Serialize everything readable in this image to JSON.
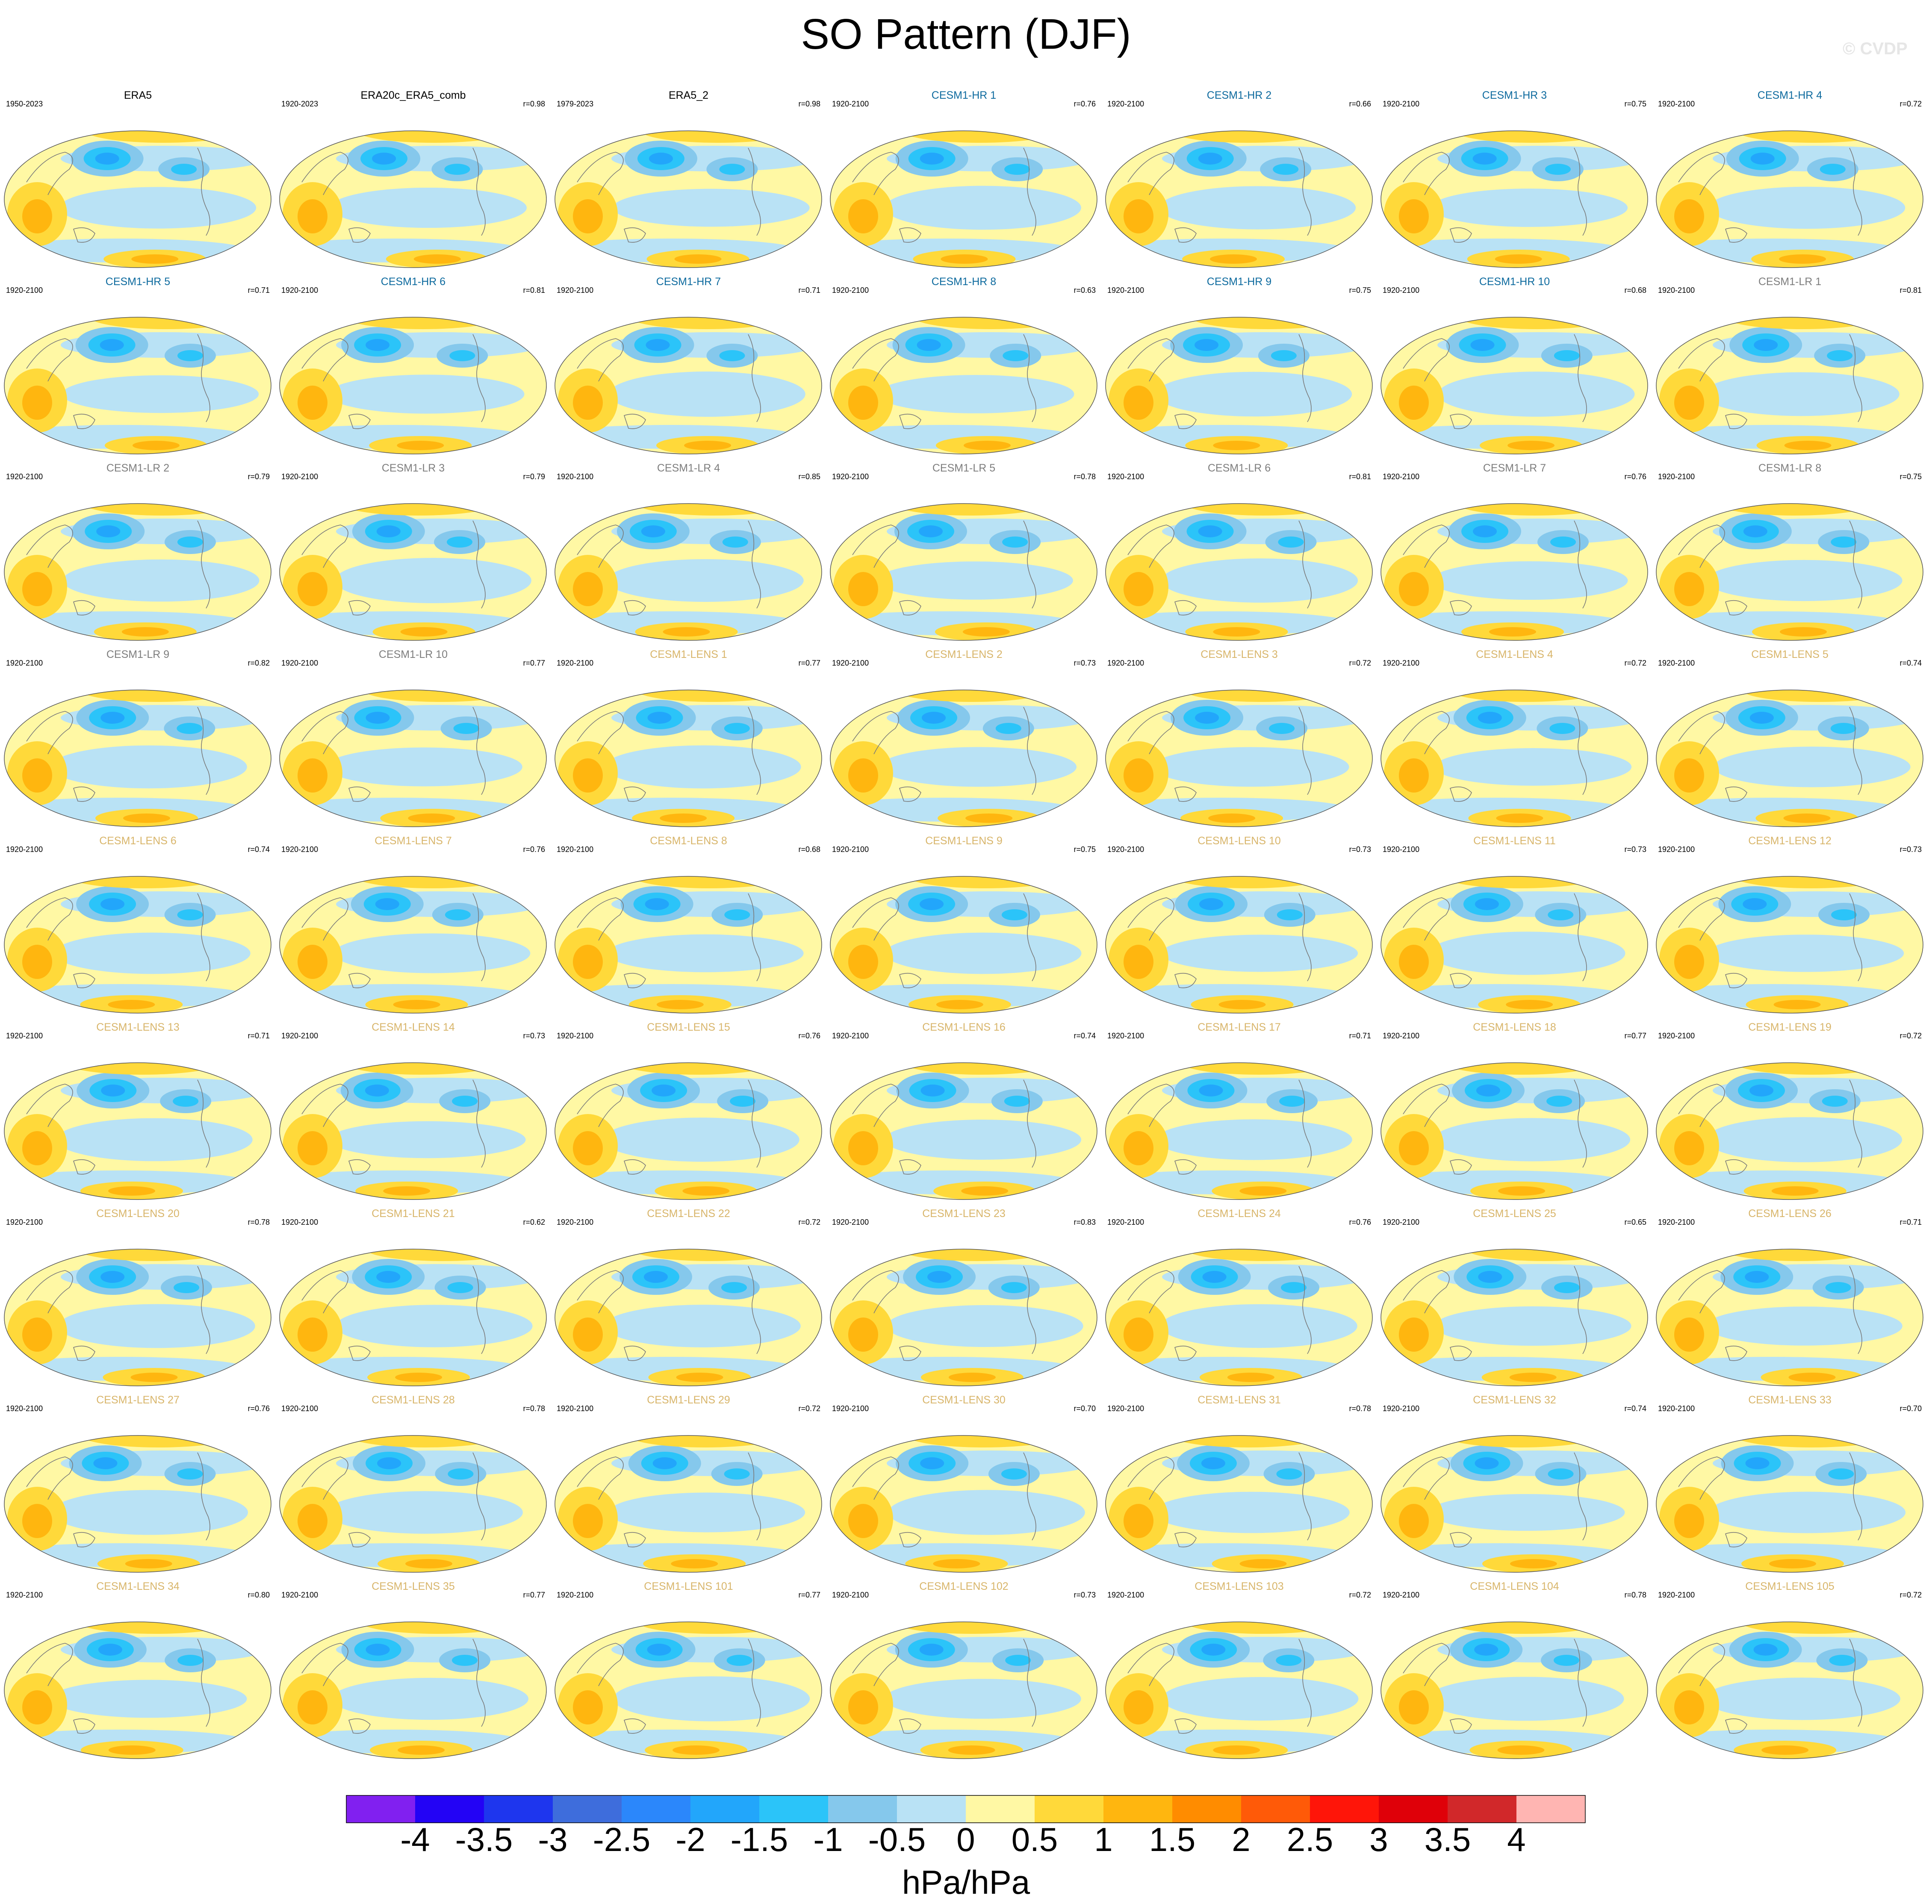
{
  "title": "SO Pattern (DJF)",
  "watermark": "© CVDP",
  "colorbar": {
    "units": "hPa/hPa",
    "tick_labels": [
      "-4",
      "-3.5",
      "-3",
      "-2.5",
      "-2",
      "-1.5",
      "-1",
      "-0.5",
      "0",
      "0.5",
      "1",
      "1.5",
      "2",
      "2.5",
      "3",
      "3.5",
      "4"
    ],
    "colors": [
      "#8120f0",
      "#2303f5",
      "#1e36ee",
      "#3e6ddc",
      "#2b87fb",
      "#22a6fb",
      "#2bc4f9",
      "#85c8ec",
      "#b9e2f5",
      "#fff8a4",
      "#ffd93a",
      "#ffb60f",
      "#ff8c00",
      "#ff5a08",
      "#ff1509",
      "#df0009",
      "#d1282a",
      "#ffb5b2"
    ]
  },
  "series_colors": {
    "obs": "#000000",
    "CESM1-HR": "#0d6a9e",
    "CESM1-LR": "#7d7d7d",
    "CESM1-LENS": "#d8b56a"
  },
  "panels": [
    {
      "name": "ERA5",
      "group": "obs",
      "years": "1950-2023",
      "r": ""
    },
    {
      "name": "ERA20c_ERA5_comb",
      "group": "obs",
      "years": "1920-2023",
      "r": "r=0.98"
    },
    {
      "name": "ERA5_2",
      "group": "obs",
      "years": "1979-2023",
      "r": "r=0.98"
    },
    {
      "name": "CESM1-HR 1",
      "group": "CESM1-HR",
      "years": "1920-2100",
      "r": "r=0.76"
    },
    {
      "name": "CESM1-HR 2",
      "group": "CESM1-HR",
      "years": "1920-2100",
      "r": "r=0.66"
    },
    {
      "name": "CESM1-HR 3",
      "group": "CESM1-HR",
      "years": "1920-2100",
      "r": "r=0.75"
    },
    {
      "name": "CESM1-HR 4",
      "group": "CESM1-HR",
      "years": "1920-2100",
      "r": "r=0.72"
    },
    {
      "name": "CESM1-HR 5",
      "group": "CESM1-HR",
      "years": "1920-2100",
      "r": "r=0.71"
    },
    {
      "name": "CESM1-HR 6",
      "group": "CESM1-HR",
      "years": "1920-2100",
      "r": "r=0.81"
    },
    {
      "name": "CESM1-HR 7",
      "group": "CESM1-HR",
      "years": "1920-2100",
      "r": "r=0.71"
    },
    {
      "name": "CESM1-HR 8",
      "group": "CESM1-HR",
      "years": "1920-2100",
      "r": "r=0.63"
    },
    {
      "name": "CESM1-HR 9",
      "group": "CESM1-HR",
      "years": "1920-2100",
      "r": "r=0.75"
    },
    {
      "name": "CESM1-HR 10",
      "group": "CESM1-HR",
      "years": "1920-2100",
      "r": "r=0.68"
    },
    {
      "name": "CESM1-LR 1",
      "group": "CESM1-LR",
      "years": "1920-2100",
      "r": "r=0.81"
    },
    {
      "name": "CESM1-LR 2",
      "group": "CESM1-LR",
      "years": "1920-2100",
      "r": "r=0.79"
    },
    {
      "name": "CESM1-LR 3",
      "group": "CESM1-LR",
      "years": "1920-2100",
      "r": "r=0.79"
    },
    {
      "name": "CESM1-LR 4",
      "group": "CESM1-LR",
      "years": "1920-2100",
      "r": "r=0.85"
    },
    {
      "name": "CESM1-LR 5",
      "group": "CESM1-LR",
      "years": "1920-2100",
      "r": "r=0.78"
    },
    {
      "name": "CESM1-LR 6",
      "group": "CESM1-LR",
      "years": "1920-2100",
      "r": "r=0.81"
    },
    {
      "name": "CESM1-LR 7",
      "group": "CESM1-LR",
      "years": "1920-2100",
      "r": "r=0.76"
    },
    {
      "name": "CESM1-LR 8",
      "group": "CESM1-LR",
      "years": "1920-2100",
      "r": "r=0.75"
    },
    {
      "name": "CESM1-LR 9",
      "group": "CESM1-LR",
      "years": "1920-2100",
      "r": "r=0.82"
    },
    {
      "name": "CESM1-LR 10",
      "group": "CESM1-LR",
      "years": "1920-2100",
      "r": "r=0.77"
    },
    {
      "name": "CESM1-LENS 1",
      "group": "CESM1-LENS",
      "years": "1920-2100",
      "r": "r=0.77"
    },
    {
      "name": "CESM1-LENS 2",
      "group": "CESM1-LENS",
      "years": "1920-2100",
      "r": "r=0.73"
    },
    {
      "name": "CESM1-LENS 3",
      "group": "CESM1-LENS",
      "years": "1920-2100",
      "r": "r=0.72"
    },
    {
      "name": "CESM1-LENS 4",
      "group": "CESM1-LENS",
      "years": "1920-2100",
      "r": "r=0.72"
    },
    {
      "name": "CESM1-LENS 5",
      "group": "CESM1-LENS",
      "years": "1920-2100",
      "r": "r=0.74"
    },
    {
      "name": "CESM1-LENS 6",
      "group": "CESM1-LENS",
      "years": "1920-2100",
      "r": "r=0.74"
    },
    {
      "name": "CESM1-LENS 7",
      "group": "CESM1-LENS",
      "years": "1920-2100",
      "r": "r=0.76"
    },
    {
      "name": "CESM1-LENS 8",
      "group": "CESM1-LENS",
      "years": "1920-2100",
      "r": "r=0.68"
    },
    {
      "name": "CESM1-LENS 9",
      "group": "CESM1-LENS",
      "years": "1920-2100",
      "r": "r=0.75"
    },
    {
      "name": "CESM1-LENS 10",
      "group": "CESM1-LENS",
      "years": "1920-2100",
      "r": "r=0.73"
    },
    {
      "name": "CESM1-LENS 11",
      "group": "CESM1-LENS",
      "years": "1920-2100",
      "r": "r=0.73"
    },
    {
      "name": "CESM1-LENS 12",
      "group": "CESM1-LENS",
      "years": "1920-2100",
      "r": "r=0.73"
    },
    {
      "name": "CESM1-LENS 13",
      "group": "CESM1-LENS",
      "years": "1920-2100",
      "r": "r=0.71"
    },
    {
      "name": "CESM1-LENS 14",
      "group": "CESM1-LENS",
      "years": "1920-2100",
      "r": "r=0.73"
    },
    {
      "name": "CESM1-LENS 15",
      "group": "CESM1-LENS",
      "years": "1920-2100",
      "r": "r=0.76"
    },
    {
      "name": "CESM1-LENS 16",
      "group": "CESM1-LENS",
      "years": "1920-2100",
      "r": "r=0.74"
    },
    {
      "name": "CESM1-LENS 17",
      "group": "CESM1-LENS",
      "years": "1920-2100",
      "r": "r=0.71"
    },
    {
      "name": "CESM1-LENS 18",
      "group": "CESM1-LENS",
      "years": "1920-2100",
      "r": "r=0.77"
    },
    {
      "name": "CESM1-LENS 19",
      "group": "CESM1-LENS",
      "years": "1920-2100",
      "r": "r=0.72"
    },
    {
      "name": "CESM1-LENS 20",
      "group": "CESM1-LENS",
      "years": "1920-2100",
      "r": "r=0.78"
    },
    {
      "name": "CESM1-LENS 21",
      "group": "CESM1-LENS",
      "years": "1920-2100",
      "r": "r=0.62"
    },
    {
      "name": "CESM1-LENS 22",
      "group": "CESM1-LENS",
      "years": "1920-2100",
      "r": "r=0.72"
    },
    {
      "name": "CESM1-LENS 23",
      "group": "CESM1-LENS",
      "years": "1920-2100",
      "r": "r=0.83"
    },
    {
      "name": "CESM1-LENS 24",
      "group": "CESM1-LENS",
      "years": "1920-2100",
      "r": "r=0.76"
    },
    {
      "name": "CESM1-LENS 25",
      "group": "CESM1-LENS",
      "years": "1920-2100",
      "r": "r=0.65"
    },
    {
      "name": "CESM1-LENS 26",
      "group": "CESM1-LENS",
      "years": "1920-2100",
      "r": "r=0.71"
    },
    {
      "name": "CESM1-LENS 27",
      "group": "CESM1-LENS",
      "years": "1920-2100",
      "r": "r=0.76"
    },
    {
      "name": "CESM1-LENS 28",
      "group": "CESM1-LENS",
      "years": "1920-2100",
      "r": "r=0.78"
    },
    {
      "name": "CESM1-LENS 29",
      "group": "CESM1-LENS",
      "years": "1920-2100",
      "r": "r=0.72"
    },
    {
      "name": "CESM1-LENS 30",
      "group": "CESM1-LENS",
      "years": "1920-2100",
      "r": "r=0.70"
    },
    {
      "name": "CESM1-LENS 31",
      "group": "CESM1-LENS",
      "years": "1920-2100",
      "r": "r=0.78"
    },
    {
      "name": "CESM1-LENS 32",
      "group": "CESM1-LENS",
      "years": "1920-2100",
      "r": "r=0.74"
    },
    {
      "name": "CESM1-LENS 33",
      "group": "CESM1-LENS",
      "years": "1920-2100",
      "r": "r=0.70"
    },
    {
      "name": "CESM1-LENS 34",
      "group": "CESM1-LENS",
      "years": "1920-2100",
      "r": "r=0.80"
    },
    {
      "name": "CESM1-LENS 35",
      "group": "CESM1-LENS",
      "years": "1920-2100",
      "r": "r=0.77"
    },
    {
      "name": "CESM1-LENS 101",
      "group": "CESM1-LENS",
      "years": "1920-2100",
      "r": "r=0.77"
    },
    {
      "name": "CESM1-LENS 102",
      "group": "CESM1-LENS",
      "years": "1920-2100",
      "r": "r=0.73"
    },
    {
      "name": "CESM1-LENS 103",
      "group": "CESM1-LENS",
      "years": "1920-2100",
      "r": "r=0.72"
    },
    {
      "name": "CESM1-LENS 104",
      "group": "CESM1-LENS",
      "years": "1920-2100",
      "r": "r=0.78"
    },
    {
      "name": "CESM1-LENS 105",
      "group": "CESM1-LENS",
      "years": "1920-2100",
      "r": "r=0.72"
    }
  ]
}
